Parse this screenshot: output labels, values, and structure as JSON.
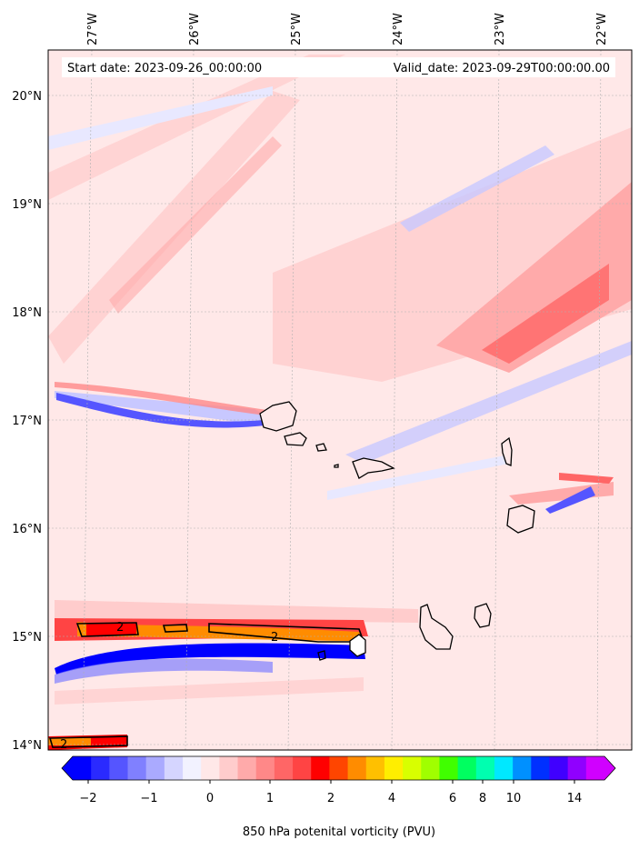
{
  "header": {
    "start_date": "Start date: 2023-09-26_00:00:00",
    "valid_date": "Valid_date: 2023-09-29T00:00:00.00"
  },
  "axes": {
    "longitude_labels": [
      "27°W",
      "26°W",
      "25°W",
      "24°W",
      "23°W",
      "22°W"
    ],
    "latitude_labels": [
      "20°N",
      "19°N",
      "18°N",
      "17°N",
      "16°N",
      "15°N",
      "14°N"
    ]
  },
  "contour_labels": [
    "2",
    "2",
    "2"
  ],
  "colorbar": {
    "title": "850 hPa potenital vorticity (PVU)",
    "tick_labels": [
      "−2",
      "−1",
      "0",
      "1",
      "2",
      "4",
      "6",
      "8",
      "10",
      "14"
    ],
    "colors": [
      "#0000ff",
      "#2a2aff",
      "#5555ff",
      "#8080ff",
      "#aaaaff",
      "#d5d5ff",
      "#f2f2ff",
      "#ffe8e8",
      "#ffcccc",
      "#ffaaaa",
      "#ff8888",
      "#ff6666",
      "#ff4444",
      "#ff0000",
      "#ff4500",
      "#ff8c00",
      "#ffc000",
      "#ffee00",
      "#d8ff00",
      "#a0ff00",
      "#40ff00",
      "#00ff60",
      "#00ffb0",
      "#00e8ff",
      "#0090ff",
      "#0030ff",
      "#4000ff",
      "#9000ff",
      "#d000ff"
    ]
  },
  "colors": {
    "background": "#ffe8e8",
    "positive_light": "#ffcccc",
    "positive_mid": "#ffaaaa",
    "positive_strong": "#ff6666",
    "negative_light": "#e8e8ff",
    "negative_mid": "#c8c8ff",
    "negative_strong": "#0000ff",
    "coast": "#000000"
  }
}
